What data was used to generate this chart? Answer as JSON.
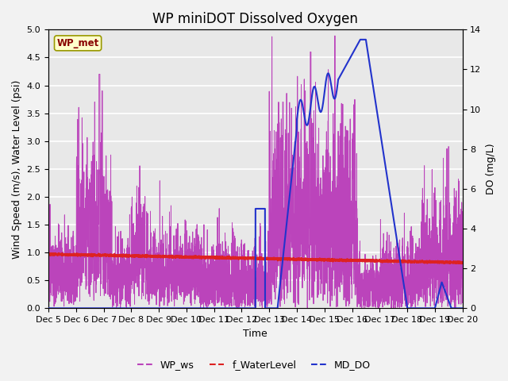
{
  "title": "WP miniDOT Dissolved Oxygen",
  "xlabel": "Time",
  "ylabel_left": "Wind Speed (m/s), Water Level (psi)",
  "ylabel_right": "DO (mg/L)",
  "ylim_left": [
    0.0,
    5.0
  ],
  "ylim_right": [
    0,
    14
  ],
  "xlim": [
    0,
    15
  ],
  "x_tick_labels": [
    "Dec 5",
    "Dec 6",
    "Dec 7",
    "Dec 8",
    "Dec 9",
    "Dec 10",
    "Dec 11",
    "Dec 12",
    "Dec 13",
    "Dec 14",
    "Dec 15",
    "Dec 16",
    "Dec 17",
    "Dec 18",
    "Dec 19",
    "Dec 20"
  ],
  "legend_label_ws": "WP_ws",
  "legend_label_wl": "f_WaterLevel",
  "legend_label_do": "MD_DO",
  "color_ws": "#BB44BB",
  "color_wl": "#DD2222",
  "color_do": "#2233CC",
  "box_label": "WP_met",
  "box_facecolor": "#FFFFCC",
  "box_edgecolor": "#999900",
  "box_textcolor": "#880000",
  "bg_color": "#E8E8E8",
  "grid_color": "#FFFFFF",
  "title_fontsize": 12,
  "axis_fontsize": 9,
  "tick_fontsize": 8
}
